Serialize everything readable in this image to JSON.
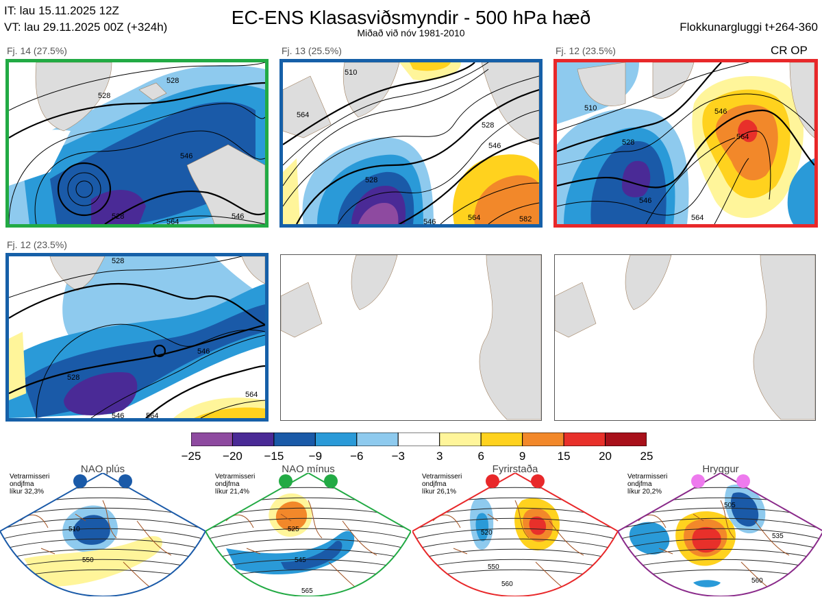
{
  "header": {
    "it_line": "IT: lau 15.11.2025 12Z",
    "vt_line": "VT: lau 29.11.2025 00Z  (+324h)",
    "title": "EC-ENS Klasasviðsmyndir - 500 hPa hæð",
    "subtitle": "Miðað við nóv 1981-2010",
    "window": "Flokkunargluggi t+264-360"
  },
  "panels": [
    {
      "label": "Fj. 14 (27.5%)",
      "border": "#22aa44",
      "contours": [
        "528",
        "528",
        "546",
        "528",
        "546",
        "564"
      ]
    },
    {
      "label": "Fj. 13 (25.5%)",
      "border": "#1660a8",
      "contours": [
        "510",
        "528",
        "546",
        "528",
        "546",
        "564",
        "582",
        "564"
      ]
    },
    {
      "label": "Fj. 12 (23.5%)",
      "border": "#e8282a",
      "extra": "CR OP",
      "contours": [
        "510",
        "528",
        "546",
        "564",
        "546",
        "564"
      ]
    },
    {
      "label": "Fj. 12 (23.5%)",
      "border": "#1660a8",
      "contours": [
        "528",
        "528",
        "546",
        "564",
        "546",
        "564"
      ]
    }
  ],
  "colorbar": {
    "colors": [
      "#8e4aa0",
      "#4a2a96",
      "#1a5aa8",
      "#2a9ad8",
      "#8ecaee",
      "#ffffff",
      "#fff59a",
      "#ffd21e",
      "#f2882a",
      "#e8302a",
      "#a8101a"
    ],
    "ticks": [
      "−25",
      "−20",
      "−15",
      "−9",
      "−6",
      "−3",
      "3",
      "6",
      "9",
      "15",
      "20",
      "25"
    ]
  },
  "regimes": [
    {
      "name": "NAO plús",
      "note": [
        "Vetrarmisseri",
        "ondjfma",
        "líkur 32,3%"
      ],
      "dot_color": "#1a5aa8",
      "fan_color": "#1a5aa8",
      "labels": [
        "510",
        "550"
      ]
    },
    {
      "name": "NAO mínus",
      "note": [
        "Vetrarmisseri",
        "ondjfma",
        "líkur 21,4%"
      ],
      "dot_color": "#22aa44",
      "fan_color": "#22aa44",
      "labels": [
        "525",
        "545",
        "565"
      ]
    },
    {
      "name": "Fyrirstaða",
      "note": [
        "Vetrarmisseri",
        "ondjfma",
        "líkur 26,1%"
      ],
      "dot_color": "#e8282a",
      "fan_color": "#e8282a",
      "labels": [
        "520",
        "550",
        "560"
      ]
    },
    {
      "name": "Hryggur",
      "note": [
        "Vetrarmisseri",
        "ondjfma",
        "líkur 20,2%"
      ],
      "dot_color": "#ee7aee",
      "fan_color": "#8a2a8a",
      "labels": [
        "505",
        "535",
        "560"
      ]
    }
  ]
}
